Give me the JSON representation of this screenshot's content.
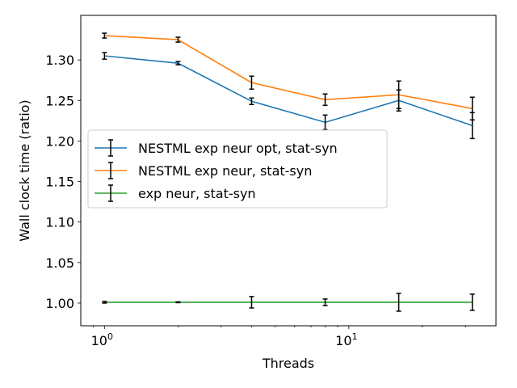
{
  "chart_data": {
    "type": "line",
    "xscale": "log",
    "xlabel": "Threads",
    "ylabel": "Wall clock time (ratio)",
    "x": [
      1,
      2,
      4,
      8,
      16,
      32
    ],
    "xlim": [
      0.8,
      40
    ],
    "ylim": [
      0.972,
      1.355
    ],
    "x_ticks": [
      {
        "value": 1,
        "base": "10",
        "exp": "0"
      },
      {
        "value": 10,
        "base": "10",
        "exp": "1"
      }
    ],
    "y_ticks": [
      {
        "value": 1.0,
        "label": "1.00"
      },
      {
        "value": 1.05,
        "label": "1.05"
      },
      {
        "value": 1.1,
        "label": "1.10"
      },
      {
        "value": 1.15,
        "label": "1.15"
      },
      {
        "value": 1.2,
        "label": "1.20"
      },
      {
        "value": 1.25,
        "label": "1.25"
      },
      {
        "value": 1.3,
        "label": "1.30"
      }
    ],
    "grid": false,
    "legend_position": "center-left",
    "series": [
      {
        "name": "NESTML exp neur opt, stat-syn",
        "color": "#1f77b4",
        "values": [
          1.305,
          1.296,
          1.249,
          1.223,
          1.25,
          1.219
        ],
        "errors": [
          0.004,
          0.002,
          0.004,
          0.009,
          0.013,
          0.016
        ]
      },
      {
        "name": "NESTML exp neur, stat-syn",
        "color": "#ff7f0e",
        "values": [
          1.33,
          1.325,
          1.272,
          1.251,
          1.257,
          1.24
        ],
        "errors": [
          0.003,
          0.003,
          0.008,
          0.007,
          0.017,
          0.014
        ]
      },
      {
        "name": "exp neur, stat-syn",
        "color": "#2ca02c",
        "values": [
          1.001,
          1.001,
          1.001,
          1.001,
          1.001,
          1.001
        ],
        "errors": [
          0.001,
          0.0005,
          0.007,
          0.004,
          0.011,
          0.01
        ]
      }
    ]
  }
}
